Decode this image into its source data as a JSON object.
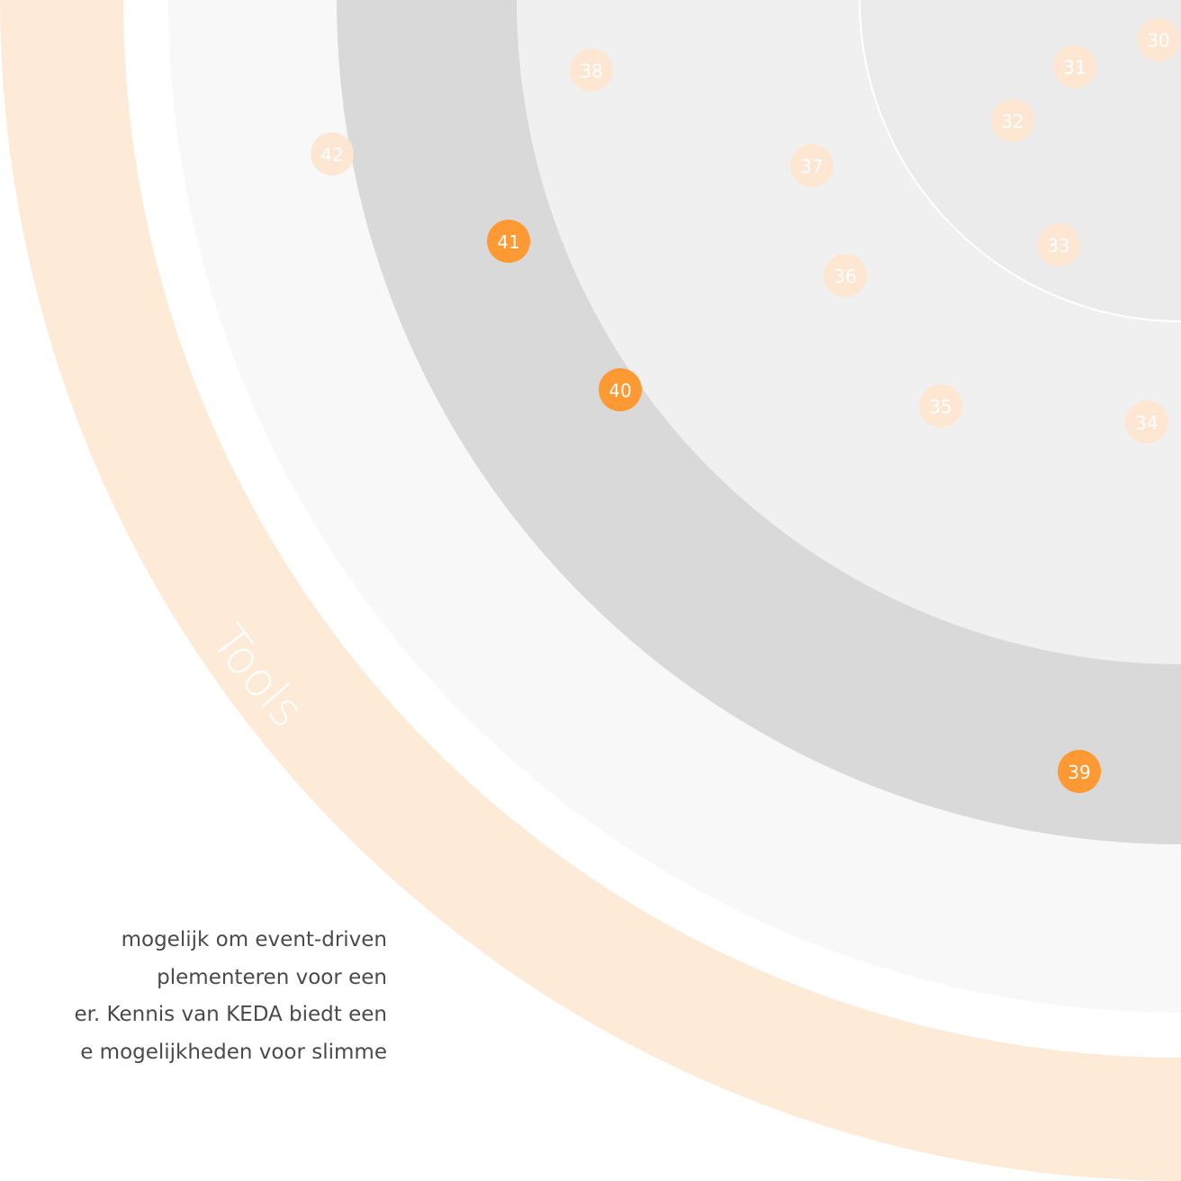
{
  "quadrant": {
    "label": "Tools"
  },
  "colors": {
    "outer_band": "#fdebd8",
    "ring_hold": "#f8f8f8",
    "ring_assess": "#d9d9d9",
    "ring_trial": "#f0f0f0",
    "ring_adopt": "#ebebeb",
    "ring_divider": "#ffffff",
    "blip_active": "#ff9933",
    "blip_inactive": "#fde7d2",
    "blip_text": "#ffffff",
    "label_text": "#ffffff"
  },
  "blips": [
    {
      "label": "30",
      "active": false
    },
    {
      "label": "31",
      "active": false
    },
    {
      "label": "32",
      "active": false
    },
    {
      "label": "33",
      "active": false
    },
    {
      "label": "34",
      "active": false
    },
    {
      "label": "35",
      "active": false
    },
    {
      "label": "36",
      "active": false
    },
    {
      "label": "37",
      "active": false
    },
    {
      "label": "38",
      "active": false
    },
    {
      "label": "39",
      "active": true
    },
    {
      "label": "40",
      "active": true
    },
    {
      "label": "41",
      "active": true
    },
    {
      "label": "42",
      "active": false
    }
  ],
  "description": {
    "text": "mogelijk om event-driven\nplementeren voor een\ner. Kennis van KEDA biedt een\ne mogelijkheden voor slimme"
  }
}
